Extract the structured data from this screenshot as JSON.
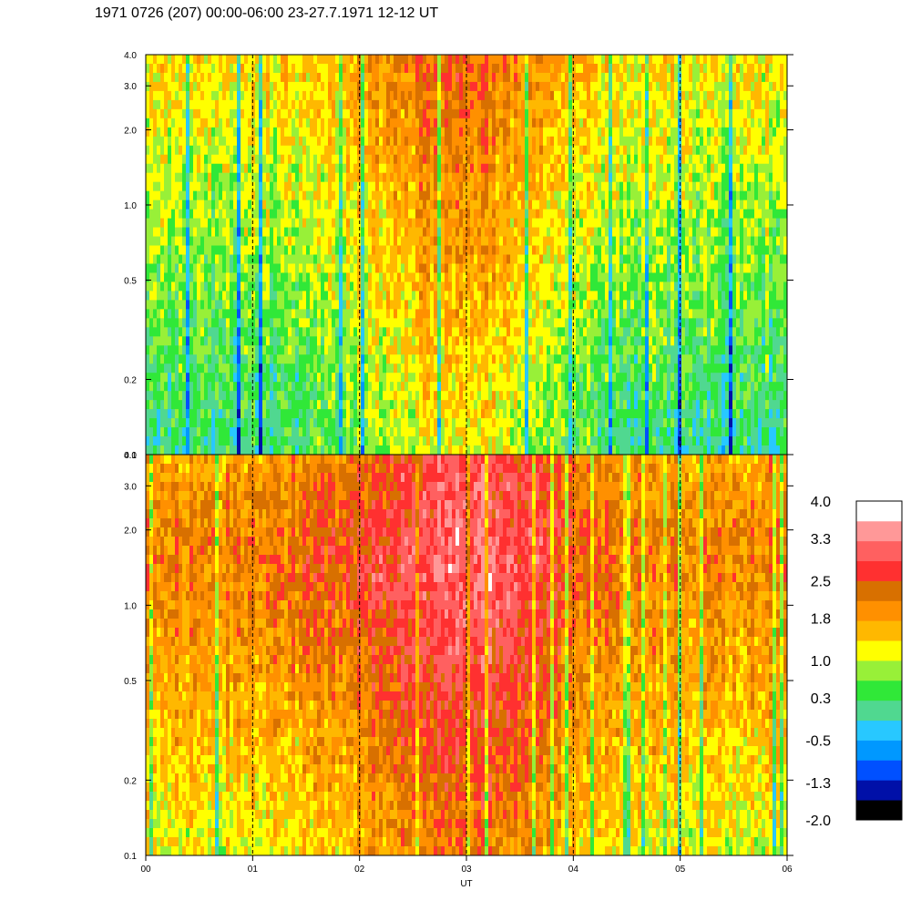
{
  "title": "1971 0726 (207) 00:00-06:00 23-27.7.1971  12-12 UT",
  "chart_data": {
    "type": "heatmap",
    "title": "1971 0726 (207) 00:00-06:00 23-27.7.1971  12-12 UT",
    "xlabel": "UT",
    "x_tick_labels": [
      "00",
      "01",
      "02",
      "03",
      "04",
      "05",
      "06"
    ],
    "x_range": [
      0,
      6
    ],
    "x_grid_hours": [
      1,
      2,
      3,
      4,
      5
    ],
    "y_scale": "log",
    "y_range": [
      0.1,
      4.0
    ],
    "y_ticks": [
      0.1,
      0.2,
      0.5,
      1.0,
      2.0,
      3.0,
      4.0
    ],
    "y_tick_labels": [
      "0.1",
      "0.2",
      "0.5",
      "1.0",
      "2.0",
      "3.0",
      "4.0"
    ],
    "panels": [
      {
        "name": "top",
        "description_level": "low",
        "base": 0.6
      },
      {
        "name": "bottom",
        "description_level": "high",
        "base": 1.9
      }
    ],
    "colorbar": {
      "levels": [
        -2.0,
        -1.65,
        -1.3,
        -0.9,
        -0.5,
        -0.1,
        0.3,
        0.65,
        1.0,
        1.4,
        1.8,
        2.15,
        2.5,
        2.9,
        3.3,
        3.65,
        4.0
      ],
      "tick_labels": [
        "4.0",
        "3.3",
        "2.5",
        "1.8",
        "1.0",
        "0.3",
        "-0.5",
        "-1.3",
        "-2.0"
      ],
      "colors": [
        "#000000",
        "#0010a8",
        "#0050ff",
        "#0098ff",
        "#28c8ff",
        "#50d890",
        "#30e838",
        "#98f038",
        "#ffff00",
        "#ffb800",
        "#ff9000",
        "#d87000",
        "#ff3030",
        "#ff6060",
        "#ff9898",
        "#ffffff"
      ]
    }
  }
}
